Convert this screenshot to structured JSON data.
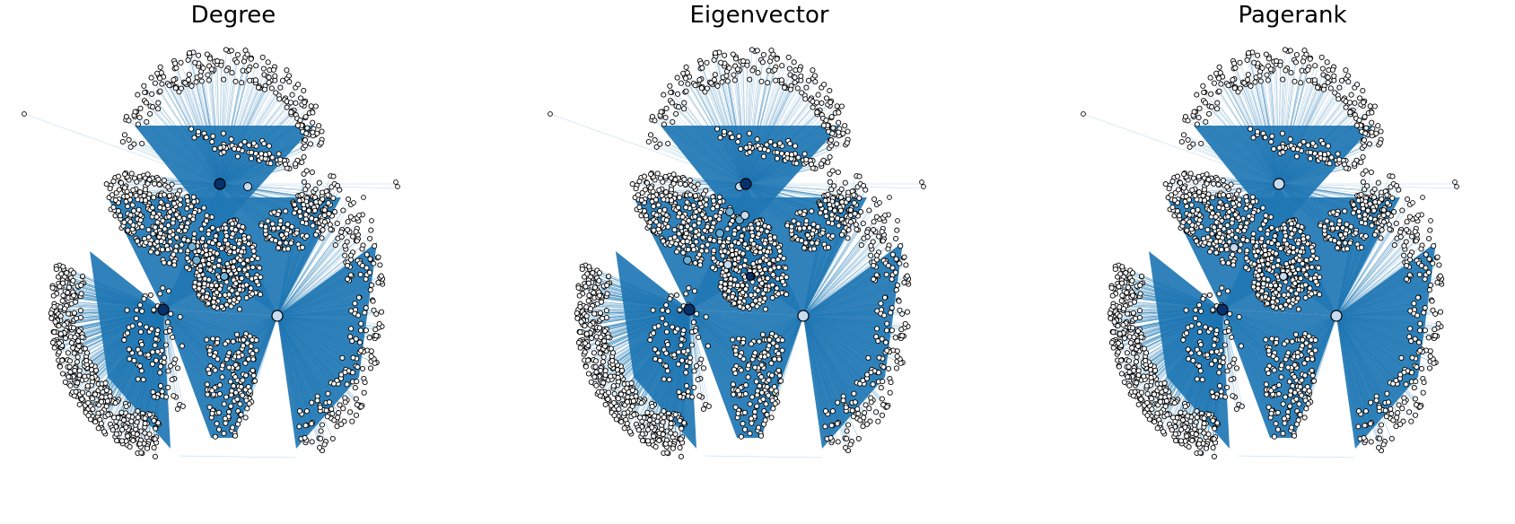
{
  "panels": [
    {
      "title": "Degree"
    },
    {
      "title": "Eigenvector"
    },
    {
      "title": "Pagerank"
    }
  ],
  "colors": {
    "edge": "#1f77b4",
    "edge_light": "#9ecae1",
    "node_fill": "#ffffff",
    "node_stroke": "#000000",
    "hub_dark": "#08306b",
    "hub_mid": "#6baed6",
    "hub_light": "#c6dbef"
  }
}
